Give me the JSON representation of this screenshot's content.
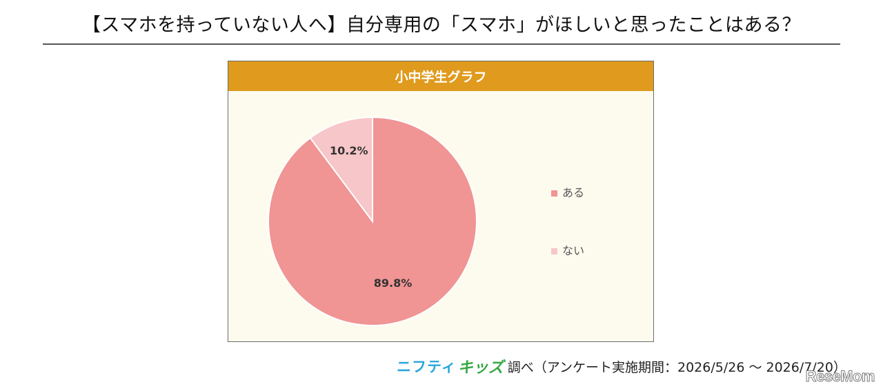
{
  "page": {
    "title": "【スマホを持っていない人へ】自分専用の「スマホ」がほしいと思ったことはある？"
  },
  "panel": {
    "header": "小中学生グラフ"
  },
  "footer": {
    "brand_part1": "ニフティ",
    "brand_part2": "キッズ",
    "source": "調べ（アンケート実施期間：2026/5/26 ～ 2026/7/20）"
  },
  "watermark": "ReseMom",
  "chart_data": {
    "type": "pie",
    "title": "小中学生グラフ",
    "slices": [
      {
        "label": "ある",
        "value": 89.8,
        "display": "89.8%",
        "color": "#f09494"
      },
      {
        "label": "ない",
        "value": 10.2,
        "display": "10.2%",
        "color": "#f7c6c8"
      }
    ],
    "start_angle": "12 o'clock",
    "direction": "clockwise",
    "legend_position": "right"
  },
  "colors": {
    "header_bg": "#e09a1d",
    "panel_bg": "#fdfbee",
    "brand_blue": "#2aa6d9",
    "brand_green": "#36a845"
  }
}
